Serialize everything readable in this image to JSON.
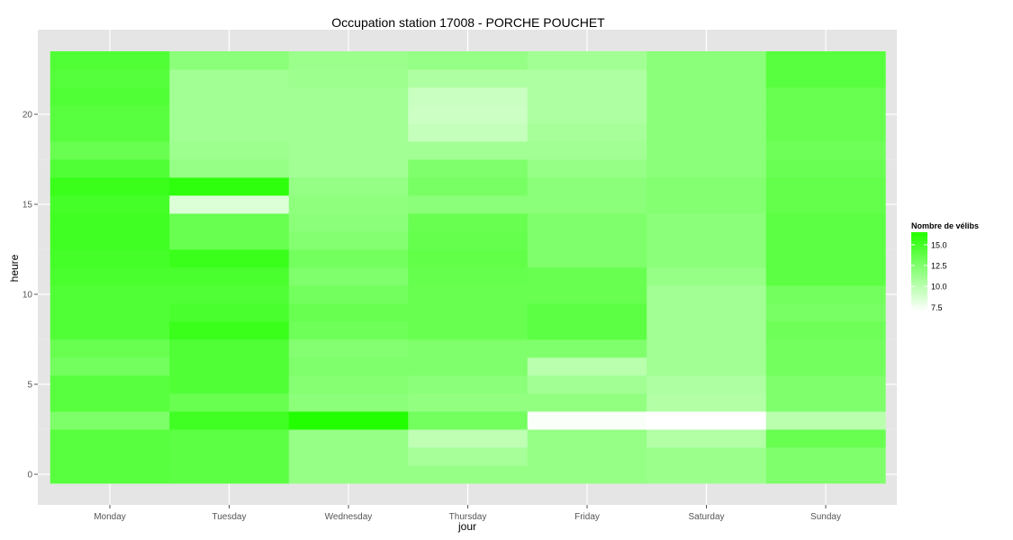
{
  "chart_data": {
    "type": "heatmap",
    "title": "Occupation station 17008 - PORCHE POUCHET",
    "xlabel": "jour",
    "ylabel": "heure",
    "categories": [
      "Monday",
      "Tuesday",
      "Wednesday",
      "Thursday",
      "Friday",
      "Saturday",
      "Sunday"
    ],
    "hours": [
      0,
      1,
      2,
      3,
      4,
      5,
      6,
      7,
      8,
      9,
      10,
      11,
      12,
      13,
      14,
      15,
      16,
      17,
      18,
      19,
      20,
      21,
      22,
      23
    ],
    "ylim": [
      -0.5,
      23.5
    ],
    "y_ticks": [
      0,
      5,
      10,
      15,
      20
    ],
    "y_tick_labels": [
      "0",
      "5",
      "10",
      "15",
      "20"
    ],
    "grid": true,
    "legend": {
      "title": "Nombre de vélibs",
      "position": "right",
      "min": 7.0,
      "max": 16.5,
      "breaks": [
        15.0,
        12.5,
        10.0,
        7.5
      ],
      "break_labels": [
        "15.0",
        "12.5",
        "10.0",
        "7.5"
      ],
      "low_color": "#ffffff",
      "high_color": "#22ff00"
    },
    "values": [
      [
        14.2,
        14.2,
        14.2,
        12.6,
        14.2,
        14.2,
        13.0,
        13.5,
        14.5,
        14.5,
        14.5,
        14.8,
        15.0,
        15.2,
        15.2,
        15.0,
        15.5,
        14.5,
        13.5,
        14.2,
        14.2,
        14.5,
        14.3,
        14.5
      ],
      [
        14.0,
        14.0,
        14.0,
        15.2,
        13.5,
        14.5,
        14.5,
        14.5,
        15.5,
        14.8,
        14.5,
        14.8,
        15.5,
        13.5,
        13.5,
        8.5,
        16.0,
        11.5,
        11.2,
        11.0,
        11.0,
        11.0,
        11.0,
        12.0
      ],
      [
        11.5,
        11.5,
        11.5,
        16.5,
        12.0,
        12.2,
        12.5,
        12.3,
        13.2,
        13.5,
        13.0,
        12.5,
        13.0,
        12.3,
        12.0,
        11.8,
        11.6,
        11.0,
        11.0,
        11.0,
        11.0,
        11.0,
        11.2,
        11.3
      ],
      [
        11.5,
        10.8,
        9.8,
        13.0,
        11.7,
        12.0,
        12.5,
        12.5,
        13.5,
        13.5,
        13.5,
        13.6,
        13.8,
        13.6,
        13.5,
        12.0,
        12.8,
        12.5,
        11.0,
        9.5,
        9.2,
        9.3,
        10.5,
        11.5
      ],
      [
        11.5,
        11.5,
        11.5,
        7.2,
        11.7,
        11.0,
        10.0,
        12.5,
        14.0,
        14.0,
        13.5,
        13.5,
        12.5,
        12.5,
        12.5,
        12.0,
        12.0,
        11.5,
        11.0,
        10.8,
        10.5,
        10.5,
        10.5,
        11.0
      ],
      [
        11.3,
        11.3,
        10.3,
        7.0,
        10.3,
        10.5,
        11.0,
        11.0,
        11.0,
        11.0,
        11.0,
        11.5,
        12.0,
        12.0,
        12.0,
        12.3,
        12.3,
        12.0,
        12.0,
        12.0,
        12.0,
        12.0,
        12.0,
        12.0
      ],
      [
        12.5,
        12.5,
        13.5,
        10.0,
        12.5,
        12.5,
        13.0,
        13.0,
        13.2,
        12.8,
        13.0,
        14.0,
        14.0,
        14.0,
        14.0,
        13.7,
        13.7,
        13.4,
        13.2,
        13.5,
        13.5,
        13.5,
        14.2,
        14.2
      ]
    ]
  }
}
